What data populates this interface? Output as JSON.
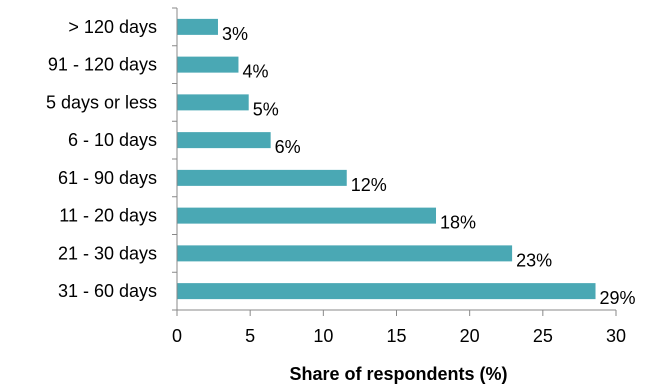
{
  "chart_data": {
    "type": "bar",
    "orientation": "horizontal",
    "title": "",
    "xlabel": "Share of respondents (%)",
    "ylabel": "",
    "categories": [
      "> 120 days",
      "91 - 120 days",
      "5 days or less",
      "6 - 10 days",
      "61 - 90 days",
      "11 - 20 days",
      "21 - 30 days",
      "31 - 60 days"
    ],
    "values": [
      2.8,
      4.2,
      4.9,
      6.4,
      11.6,
      17.7,
      22.9,
      28.6
    ],
    "data_labels": [
      "3%",
      "4%",
      "5%",
      "6%",
      "12%",
      "18%",
      "23%",
      "29%"
    ],
    "xlim": [
      0,
      30
    ],
    "xticks": [
      0,
      5,
      10,
      15,
      20,
      25,
      30
    ],
    "xtick_labels": [
      "0",
      "5",
      "10",
      "15",
      "20",
      "25",
      "30"
    ],
    "grid": false,
    "legend": "none",
    "bar_color": "#4aa8b4"
  }
}
